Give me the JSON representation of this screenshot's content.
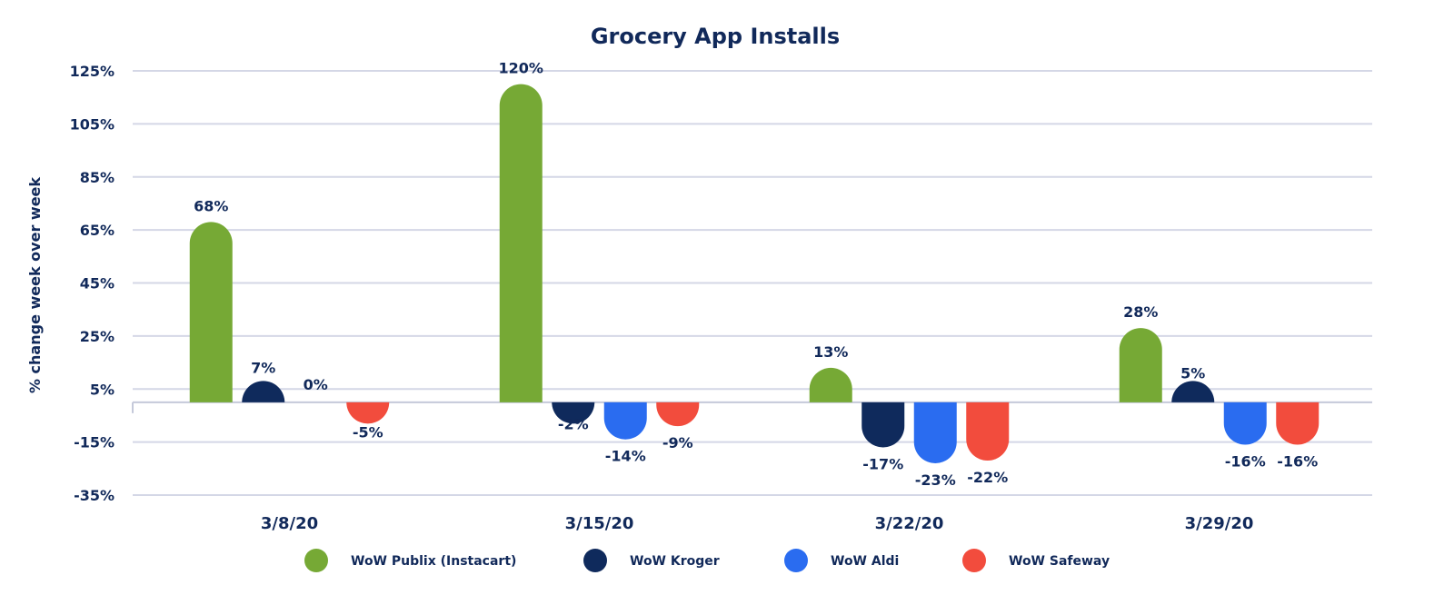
{
  "chart_data": {
    "type": "bar",
    "title": "Grocery App Installs",
    "xlabel": "",
    "ylabel": "% change week over week",
    "ylim": [
      -35,
      125
    ],
    "yticks": [
      125,
      105,
      85,
      65,
      45,
      25,
      5,
      -15,
      -35
    ],
    "ytick_labels": [
      "125%",
      "105%",
      "85%",
      "65%",
      "45%",
      "25%",
      "5%",
      "-15%",
      "-35%"
    ],
    "grid": true,
    "legend_position": "bottom",
    "categories": [
      "3/8/20",
      "3/15/20",
      "3/22/20",
      "3/29/20"
    ],
    "series": [
      {
        "name": "WoW Publix (Instacart)",
        "color": "#76a935",
        "values": [
          68,
          120,
          13,
          28
        ],
        "labels": [
          "68%",
          "120%",
          "13%",
          "28%"
        ]
      },
      {
        "name": "WoW Kroger",
        "color": "#0f2a5c",
        "values": [
          7,
          -2,
          -17,
          5
        ],
        "labels": [
          "7%",
          "-2%",
          "-17%",
          "5%"
        ]
      },
      {
        "name": "WoW Aldi",
        "color": "#2a6cf0",
        "values": [
          0,
          -14,
          -23,
          -16
        ],
        "labels": [
          "0%",
          "-14%",
          "-23%",
          "-16%"
        ]
      },
      {
        "name": "WoW Safeway",
        "color": "#f24c3d",
        "values": [
          -5,
          -9,
          -22,
          -16
        ],
        "labels": [
          "-5%",
          "-9%",
          "-22%",
          "-16%"
        ]
      }
    ]
  }
}
